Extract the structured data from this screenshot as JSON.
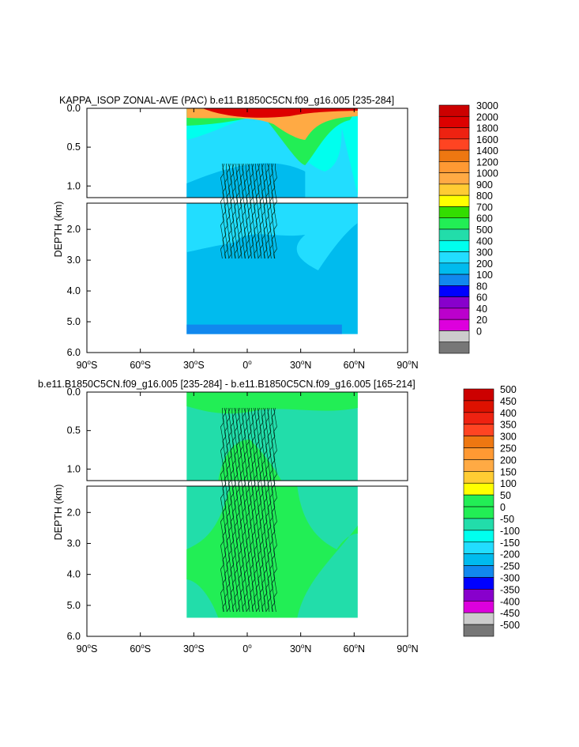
{
  "chart_data": [
    {
      "type": "filled-contour",
      "title": "KAPPA_ISOP ZONAL-AVE (PAC) b.e11.B1850C5CN.f09_g16.005 [235-284]",
      "ylabel": "DEPTH (km)",
      "xlabel": "",
      "x_range": [
        -90,
        90
      ],
      "y_upper_range": [
        0.0,
        1.15
      ],
      "y_lower_range": [
        1.15,
        6.0
      ],
      "x_ticks": [
        {
          "value": -90,
          "deg": "90",
          "hemi": "S"
        },
        {
          "value": -60,
          "deg": "60",
          "hemi": "S"
        },
        {
          "value": -30,
          "deg": "30",
          "hemi": "S"
        },
        {
          "value": 0,
          "deg": "0",
          "hemi": ""
        },
        {
          "value": 30,
          "deg": "30",
          "hemi": "N"
        },
        {
          "value": 60,
          "deg": "60",
          "hemi": "N"
        },
        {
          "value": 90,
          "deg": "90",
          "hemi": "N"
        }
      ],
      "y_upper_ticks": [
        {
          "value": 0.0,
          "label": "0.0"
        },
        {
          "value": 0.5,
          "label": "0.5"
        },
        {
          "value": 1.0,
          "label": "1.0"
        }
      ],
      "y_lower_ticks": [
        {
          "value": 2.0,
          "label": "2.0"
        },
        {
          "value": 3.0,
          "label": "3.0"
        },
        {
          "value": 4.0,
          "label": "4.0"
        },
        {
          "value": 5.0,
          "label": "5.0"
        },
        {
          "value": 6.0,
          "label": "6.0"
        }
      ],
      "data_extent": {
        "lat_min": -34,
        "lat_max": 62,
        "depth_max": 5.4
      },
      "colorbar": {
        "labels": [
          "3000",
          "2000",
          "1800",
          "1600",
          "1400",
          "1200",
          "1000",
          "900",
          "800",
          "700",
          "600",
          "500",
          "400",
          "300",
          "200",
          "100",
          "80",
          "60",
          "40",
          "20",
          "0"
        ],
        "colors": [
          "#cc0000",
          "#dd0000",
          "#ee2211",
          "#ff4422",
          "#ee7711",
          "#ff9933",
          "#ffaa44",
          "#ffcc33",
          "#ffff00",
          "#33dd00",
          "#22ee55",
          "#22ddaa",
          "#00ffee",
          "#22ddff",
          "#00bbee",
          "#1188ee",
          "#0000ff",
          "#8800cc",
          "#bb00cc",
          "#dd00dd",
          "#cccccc",
          "#777777"
        ]
      }
    },
    {
      "type": "filled-contour",
      "title": "b.e11.B1850C5CN.f09_g16.005 [235-284] - b.e11.B1850C5CN.f09_g16.005 [165-214]",
      "ylabel": "DEPTH (km)",
      "xlabel": "",
      "x_range": [
        -90,
        90
      ],
      "y_upper_range": [
        0.0,
        1.15
      ],
      "y_lower_range": [
        1.15,
        6.0
      ],
      "x_ticks": [
        {
          "value": -90,
          "deg": "90",
          "hemi": "S"
        },
        {
          "value": -60,
          "deg": "60",
          "hemi": "S"
        },
        {
          "value": -30,
          "deg": "30",
          "hemi": "S"
        },
        {
          "value": 0,
          "deg": "0",
          "hemi": ""
        },
        {
          "value": 30,
          "deg": "30",
          "hemi": "N"
        },
        {
          "value": 60,
          "deg": "60",
          "hemi": "N"
        },
        {
          "value": 90,
          "deg": "90",
          "hemi": "N"
        }
      ],
      "y_upper_ticks": [
        {
          "value": 0.0,
          "label": "0.0"
        },
        {
          "value": 0.5,
          "label": "0.5"
        },
        {
          "value": 1.0,
          "label": "1.0"
        }
      ],
      "y_lower_ticks": [
        {
          "value": 2.0,
          "label": "2.0"
        },
        {
          "value": 3.0,
          "label": "3.0"
        },
        {
          "value": 4.0,
          "label": "4.0"
        },
        {
          "value": 5.0,
          "label": "5.0"
        },
        {
          "value": 6.0,
          "label": "6.0"
        }
      ],
      "data_extent": {
        "lat_min": -34,
        "lat_max": 62,
        "depth_max": 5.4
      },
      "colorbar": {
        "labels": [
          "500",
          "450",
          "400",
          "350",
          "300",
          "250",
          "200",
          "150",
          "100",
          "50",
          "0",
          "-50",
          "-100",
          "-150",
          "-200",
          "-250",
          "-300",
          "-350",
          "-400",
          "-450",
          "-500"
        ],
        "colors": [
          "#cc0000",
          "#dd1100",
          "#ee2211",
          "#ff4422",
          "#ee7711",
          "#ff9933",
          "#ffaa44",
          "#ffcc33",
          "#ffff00",
          "#22ee55",
          "#22ee55",
          "#22ddaa",
          "#00ffee",
          "#22ddff",
          "#00bbee",
          "#1188ee",
          "#0000ff",
          "#8800cc",
          "#dd00dd",
          "#cccccc",
          "#777777"
        ]
      }
    }
  ]
}
